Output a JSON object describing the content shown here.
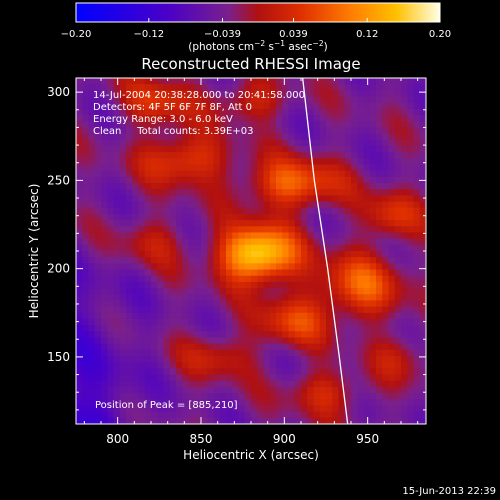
{
  "chart_data": {
    "type": "heatmap",
    "title": "Reconstructed RHESSI Image",
    "xlabel": "Heliocentric X (arcsec)",
    "ylabel": "Heliocentric Y (arcsec)",
    "xlim": [
      775,
      985
    ],
    "ylim": [
      112,
      308
    ],
    "x_ticks": [
      800,
      850,
      900,
      950
    ],
    "y_ticks": [
      150,
      200,
      250,
      300
    ],
    "x_tick_labels": [
      "800",
      "850",
      "900",
      "950"
    ],
    "y_tick_labels": [
      "150",
      "200",
      "250",
      "300"
    ],
    "colorbar": {
      "range": [
        -0.2,
        0.2
      ],
      "ticks": [
        -0.2,
        -0.12,
        -0.039,
        0.039,
        0.12,
        0.2
      ],
      "tick_labels": [
        "−0.20",
        "−0.12",
        "−0.039",
        "0.039",
        "0.12",
        "0.20"
      ],
      "unit_prefix": "(photons cm",
      "unit_exp1": "−2",
      "unit_mid1": " s",
      "unit_exp2": "−1",
      "unit_mid2": " asec",
      "unit_exp3": "−2",
      "unit_suffix": ")"
    },
    "annotations": [
      "14-Jul-2004 20:38:28.000 to 20:41:58.000",
      "Detectors: 4F 5F 6F 7F 8F, Att 0",
      "Energy Range: 3.0 - 6.0 keV",
      "Clean     Total counts: 3.39E+03"
    ],
    "peak_label": "Position of Peak = [885,210]",
    "peak": [
      885,
      210
    ],
    "limb": {
      "radius": 951,
      "points": [
        [
          911,
          308
        ],
        [
          918,
          250
        ],
        [
          926,
          200
        ],
        [
          933,
          150
        ],
        [
          938,
          112
        ]
      ]
    },
    "sources": [
      {
        "x": 884,
        "y": 208,
        "sx": 16,
        "sy": 11,
        "a": 0.22
      },
      {
        "x": 840,
        "y": 262,
        "sx": 18,
        "sy": 10,
        "a": 0.1
      },
      {
        "x": 905,
        "y": 248,
        "sx": 20,
        "sy": 10,
        "a": 0.12
      },
      {
        "x": 945,
        "y": 190,
        "sx": 18,
        "sy": 13,
        "a": 0.11
      },
      {
        "x": 965,
        "y": 230,
        "sx": 12,
        "sy": 10,
        "a": 0.08
      },
      {
        "x": 905,
        "y": 170,
        "sx": 15,
        "sy": 10,
        "a": 0.09
      },
      {
        "x": 860,
        "y": 150,
        "sx": 15,
        "sy": 9,
        "a": 0.06
      },
      {
        "x": 925,
        "y": 130,
        "sx": 16,
        "sy": 9,
        "a": 0.07
      },
      {
        "x": 825,
        "y": 295,
        "sx": 15,
        "sy": 10,
        "a": 0.08
      },
      {
        "x": 880,
        "y": 295,
        "sx": 15,
        "sy": 8,
        "a": 0.07
      },
      {
        "x": 820,
        "y": 215,
        "sx": 15,
        "sy": 10,
        "a": 0.05
      },
      {
        "x": 970,
        "y": 150,
        "sx": 12,
        "sy": 10,
        "a": 0.05
      }
    ]
  },
  "timestamp": "15-Jun-2013 22:39"
}
